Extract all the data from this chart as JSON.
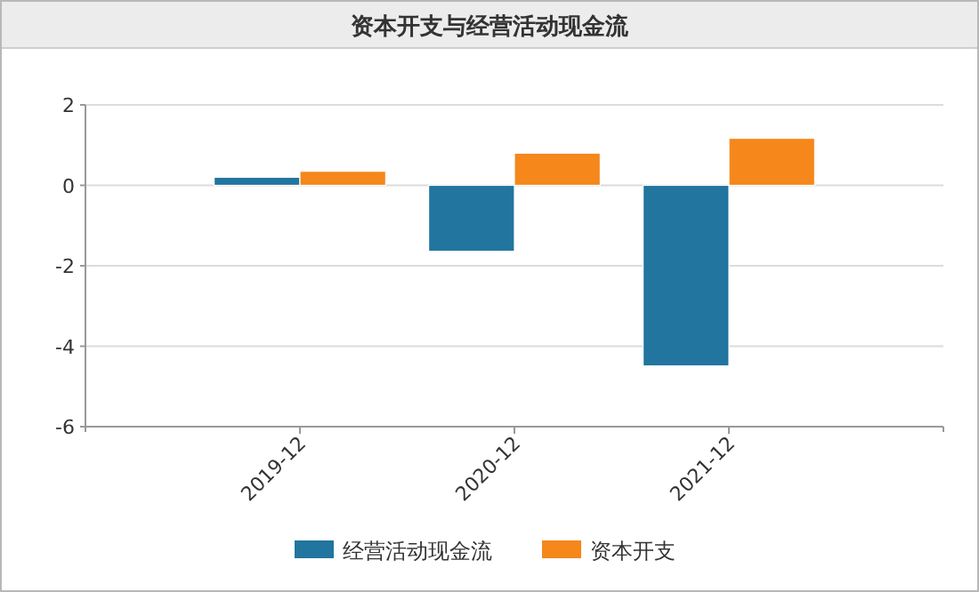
{
  "chart_data": {
    "type": "bar",
    "title": "资本开支与经营活动现金流",
    "categories": [
      "2019-12",
      "2020-12",
      "2021-12"
    ],
    "series": [
      {
        "name": "经营活动现金流",
        "color": "#21759f",
        "values": [
          0.2,
          -1.64,
          -4.49
        ]
      },
      {
        "name": "资本开支",
        "color": "#f5871b",
        "values": [
          0.35,
          0.8,
          1.17
        ]
      }
    ],
    "ylim": [
      -6,
      2
    ],
    "yticks": [
      -6,
      -4,
      -2,
      0,
      2
    ],
    "grid": "y",
    "legend": "bottom"
  }
}
